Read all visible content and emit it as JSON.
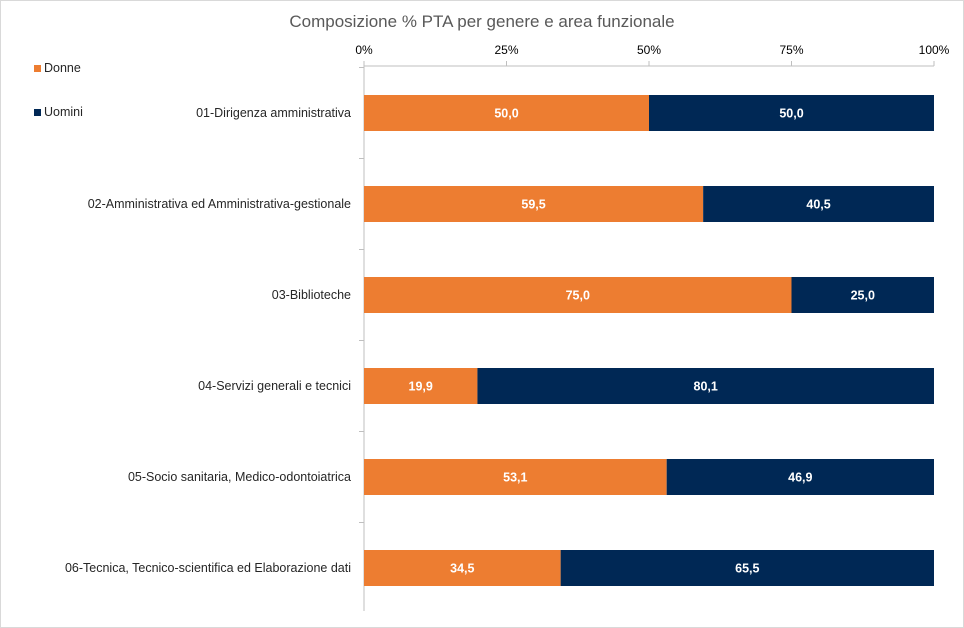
{
  "chart_data": {
    "type": "bar",
    "orientation": "horizontal",
    "stacked": "percent",
    "title": "Composizione % PTA per genere e area funzionale",
    "categories": [
      "01-Dirigenza amministrativa",
      "02-Amministrativa ed Amministrativa-gestionale",
      "03-Biblioteche",
      "04-Servizi generali e tecnici",
      "05-Socio sanitaria, Medico-odontoiatrica",
      "06-Tecnica, Tecnico-scientifica ed Elaborazione dati"
    ],
    "series": [
      {
        "name": "Donne",
        "color": "#ed7d31",
        "values": [
          50.0,
          59.5,
          75.0,
          19.9,
          53.1,
          34.5
        ]
      },
      {
        "name": "Uomini",
        "color": "#002855",
        "values": [
          50.0,
          40.5,
          25.0,
          80.1,
          46.9,
          65.5
        ]
      }
    ],
    "x_axis": {
      "position": "top",
      "range": [
        0,
        100
      ],
      "ticks": [
        "0%",
        "25%",
        "50%",
        "75%",
        "100%"
      ]
    },
    "grid": false,
    "legend_position": "top-left",
    "decimal_separator": ","
  }
}
